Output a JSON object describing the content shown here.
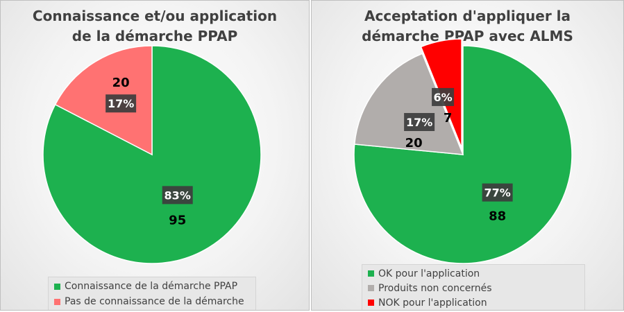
{
  "chart_data": [
    {
      "type": "pie",
      "title": "Connaissance et/ou application de la démarche PPAP",
      "title_lines": [
        "Connaissance  et/ou application",
        "de la démarche PPAP"
      ],
      "categories": [
        "Connaissance de la démarche PPAP",
        "Pas de connaissance de la démarche"
      ],
      "values": [
        95,
        20
      ],
      "percent_labels": [
        "83%",
        "17%"
      ],
      "colors": [
        "#1db14f",
        "#ff7272"
      ],
      "legend_position": "bottom"
    },
    {
      "type": "pie",
      "title": "Acceptation d'appliquer la démarche PPAP avec ALMS",
      "title_lines": [
        "Acceptation d'appliquer la",
        "démarche PPAP avec ALMS"
      ],
      "categories": [
        "OK pour l'application",
        "Produits non concernés",
        "NOK pour l'application"
      ],
      "values": [
        88,
        20,
        7
      ],
      "percent_labels": [
        "77%",
        "17%",
        "6%"
      ],
      "colors": [
        "#1db14f",
        "#b1adab",
        "#ff0000"
      ],
      "exploded": [
        false,
        false,
        true
      ],
      "legend_position": "bottom"
    }
  ]
}
